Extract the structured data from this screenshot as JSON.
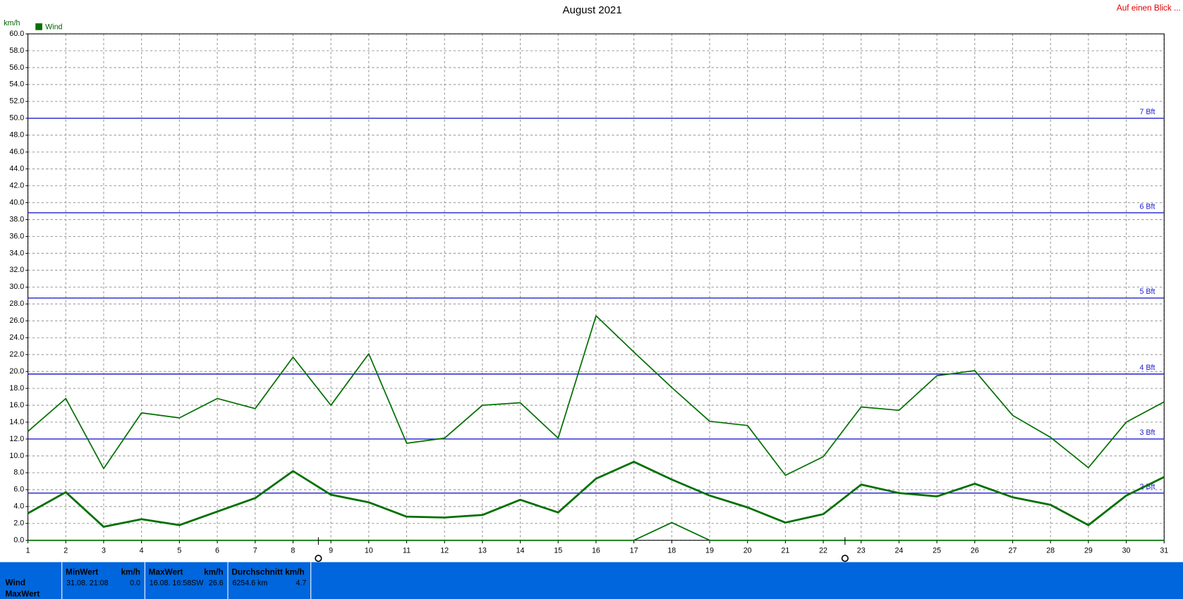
{
  "chart_data": {
    "type": "line",
    "title": "August 2021",
    "ylabel": "km/h",
    "corner_link": "Auf einen Blick ...",
    "x": [
      1,
      2,
      3,
      4,
      5,
      6,
      7,
      8,
      9,
      10,
      11,
      12,
      13,
      14,
      15,
      16,
      17,
      18,
      19,
      20,
      21,
      22,
      23,
      24,
      25,
      26,
      27,
      28,
      29,
      30,
      31
    ],
    "xlim": [
      1,
      31
    ],
    "xticks": [
      1,
      2,
      3,
      4,
      5,
      6,
      7,
      8,
      9,
      10,
      11,
      12,
      13,
      14,
      15,
      16,
      17,
      18,
      19,
      20,
      21,
      22,
      23,
      24,
      25,
      26,
      27,
      28,
      29,
      30,
      31
    ],
    "ylim": [
      0,
      60
    ],
    "yticks": [
      {
        "value": 0,
        "label": "0.0"
      },
      {
        "value": 2,
        "label": "2.0"
      },
      {
        "value": 4,
        "label": "4.0"
      },
      {
        "value": 6,
        "label": "6.0"
      },
      {
        "value": 8,
        "label": "8.0"
      },
      {
        "value": 10,
        "label": "10.0"
      },
      {
        "value": 12,
        "label": "12.0"
      },
      {
        "value": 14,
        "label": "14.0"
      },
      {
        "value": 16,
        "label": "16.0"
      },
      {
        "value": 18,
        "label": "18.0"
      },
      {
        "value": 20,
        "label": "20.0"
      },
      {
        "value": 22,
        "label": "22.0"
      },
      {
        "value": 24,
        "label": "24.0"
      },
      {
        "value": 26,
        "label": "26.0"
      },
      {
        "value": 28,
        "label": "28.0"
      },
      {
        "value": 30,
        "label": "30.0"
      },
      {
        "value": 32,
        "label": "32.0"
      },
      {
        "value": 34,
        "label": "34.0"
      },
      {
        "value": 36,
        "label": "36.0"
      },
      {
        "value": 38,
        "label": "38.0"
      },
      {
        "value": 40,
        "label": "40.0"
      },
      {
        "value": 42,
        "label": "42.0"
      },
      {
        "value": 44,
        "label": "44.0"
      },
      {
        "value": 46,
        "label": "46.0"
      },
      {
        "value": 48,
        "label": "48.0"
      },
      {
        "value": 50,
        "label": "50.0"
      },
      {
        "value": 52,
        "label": "52.0"
      },
      {
        "value": 54,
        "label": "54.0"
      },
      {
        "value": 56,
        "label": "56.0"
      },
      {
        "value": 58,
        "label": "58.0"
      },
      {
        "value": 60,
        "label": "60.0"
      }
    ],
    "grid": true,
    "reference_lines": [
      {
        "value": 50,
        "label": "7 Bft"
      },
      {
        "value": 38.8,
        "label": "6 Bft"
      },
      {
        "value": 28.7,
        "label": "5 Bft"
      },
      {
        "value": 19.7,
        "label": "4 Bft"
      },
      {
        "value": 12.0,
        "label": "3 Bft"
      },
      {
        "value": 5.6,
        "label": "2 Bft"
      }
    ],
    "reference_color": "#2020d0",
    "series": [
      {
        "name": "Wind",
        "color": "#007000",
        "values": [
          3.2,
          5.7,
          1.6,
          2.5,
          1.8,
          3.4,
          5.0,
          8.2,
          5.4,
          4.5,
          2.8,
          2.7,
          3.0,
          4.8,
          3.3,
          7.3,
          9.3,
          7.2,
          5.3,
          3.9,
          2.1,
          3.1,
          6.6,
          5.6,
          5.2,
          6.7,
          5.1,
          4.2,
          1.8,
          5.3,
          7.5
        ]
      },
      {
        "color": "#007000",
        "values": [
          12.9,
          16.8,
          8.5,
          15.1,
          14.5,
          16.8,
          15.6,
          21.7,
          16.0,
          22.1,
          11.5,
          12.1,
          16.0,
          16.3,
          12.1,
          26.6,
          22.3,
          18.1,
          14.1,
          13.6,
          7.7,
          9.9,
          15.8,
          15.4,
          19.5,
          20.1,
          14.8,
          12.2,
          8.6,
          14.0,
          16.4
        ]
      },
      {
        "color": "#007000",
        "values": [
          0,
          0,
          0,
          0,
          0,
          0,
          0,
          0,
          0,
          0,
          0,
          0,
          0,
          0,
          0,
          0,
          0,
          2.1,
          0,
          0,
          0,
          0,
          0,
          0,
          0,
          0,
          0,
          0,
          0,
          0,
          0
        ]
      }
    ]
  },
  "table": {
    "row_labels": [
      "Wind",
      "MaxWert"
    ],
    "columns": [
      {
        "header": "MinWert",
        "unit": "km/h",
        "time": "31.08.  21:08",
        "value": "0.0"
      },
      {
        "header": "MaxWert",
        "unit": "km/h",
        "time": "16.08.  16:58SW",
        "value": "26.6"
      },
      {
        "header": "Durchschnitt km/h",
        "unit": "",
        "time": "6254.6 km",
        "value": "4.7"
      }
    ]
  }
}
